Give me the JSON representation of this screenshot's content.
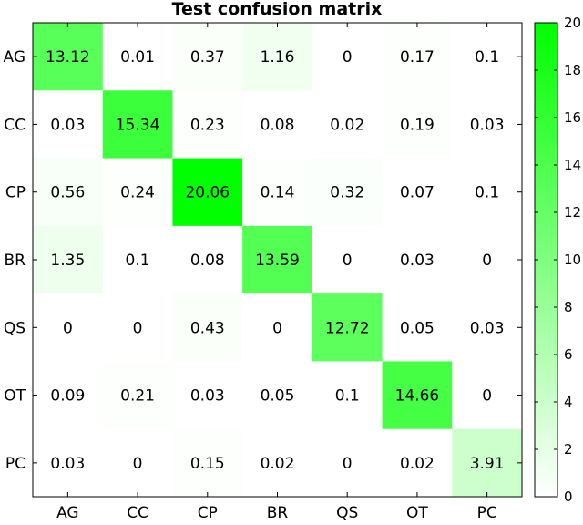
{
  "chart_data": {
    "type": "heatmap",
    "title": "Test confusion matrix",
    "row_labels": [
      "AG",
      "CC",
      "CP",
      "BR",
      "QS",
      "OT",
      "PC"
    ],
    "col_labels": [
      "AG",
      "CC",
      "CP",
      "BR",
      "QS",
      "OT",
      "PC"
    ],
    "values": [
      [
        13.12,
        0.01,
        0.37,
        1.16,
        0,
        0.17,
        0.1
      ],
      [
        0.03,
        15.34,
        0.23,
        0.08,
        0.02,
        0.19,
        0.03
      ],
      [
        0.56,
        0.24,
        20.06,
        0.14,
        0.32,
        0.07,
        0.1
      ],
      [
        1.35,
        0.1,
        0.08,
        13.59,
        0,
        0.03,
        0
      ],
      [
        0,
        0,
        0.43,
        0,
        12.72,
        0.05,
        0.03
      ],
      [
        0.09,
        0.21,
        0.03,
        0.05,
        0.1,
        14.66,
        0
      ],
      [
        0.03,
        0,
        0.15,
        0.02,
        0,
        0.02,
        3.91
      ]
    ],
    "colorbar": {
      "min": 0,
      "max": 20,
      "ticks": [
        0,
        2,
        4,
        6,
        8,
        10,
        12,
        14,
        16,
        18,
        20
      ],
      "color_low": "#ffffff",
      "color_high": "#00ff00"
    },
    "grid": false
  }
}
